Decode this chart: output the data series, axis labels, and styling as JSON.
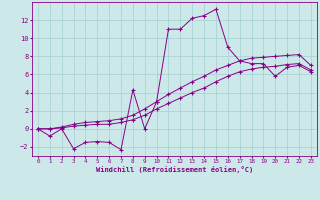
{
  "xlabel": "Windchill (Refroidissement éolien,°C)",
  "bg_color": "#cce8e8",
  "grid_color": "#aad4d4",
  "line_color": "#880088",
  "xlim_min": -0.5,
  "xlim_max": 23.5,
  "ylim_min": -3.0,
  "ylim_max": 14.0,
  "xticks": [
    0,
    1,
    2,
    3,
    4,
    5,
    6,
    7,
    8,
    9,
    10,
    11,
    12,
    13,
    14,
    15,
    16,
    17,
    18,
    19,
    20,
    21,
    22,
    23
  ],
  "yticks": [
    -2,
    0,
    2,
    4,
    6,
    8,
    10,
    12
  ],
  "line1_x": [
    0,
    1,
    2,
    3,
    4,
    5,
    6,
    7,
    8,
    9,
    10,
    11,
    12,
    13,
    14,
    15,
    16,
    17,
    18,
    19,
    20,
    21,
    22,
    23
  ],
  "line1_y": [
    0,
    -0.8,
    0.0,
    -2.2,
    -1.5,
    -1.4,
    -1.5,
    -2.3,
    4.3,
    0.0,
    3.0,
    11.0,
    11.0,
    12.2,
    12.5,
    13.2,
    9.0,
    7.5,
    7.2,
    7.2,
    5.8,
    6.8,
    7.0,
    6.3
  ],
  "line2_x": [
    0,
    1,
    2,
    3,
    4,
    5,
    6,
    7,
    8,
    9,
    10,
    11,
    12,
    13,
    14,
    15,
    16,
    17,
    18,
    19,
    20,
    21,
    22,
    23
  ],
  "line2_y": [
    0,
    0.0,
    0.1,
    0.3,
    0.4,
    0.5,
    0.5,
    0.7,
    1.0,
    1.5,
    2.2,
    2.8,
    3.4,
    4.0,
    4.5,
    5.2,
    5.8,
    6.3,
    6.6,
    6.8,
    6.9,
    7.1,
    7.2,
    6.5
  ],
  "line3_x": [
    0,
    1,
    2,
    3,
    4,
    5,
    6,
    7,
    8,
    9,
    10,
    11,
    12,
    13,
    14,
    15,
    16,
    17,
    18,
    19,
    20,
    21,
    22,
    23
  ],
  "line3_y": [
    0,
    0.0,
    0.2,
    0.5,
    0.7,
    0.8,
    0.9,
    1.1,
    1.5,
    2.2,
    3.0,
    3.8,
    4.5,
    5.2,
    5.8,
    6.5,
    7.0,
    7.5,
    7.8,
    7.9,
    8.0,
    8.1,
    8.2,
    7.0
  ]
}
